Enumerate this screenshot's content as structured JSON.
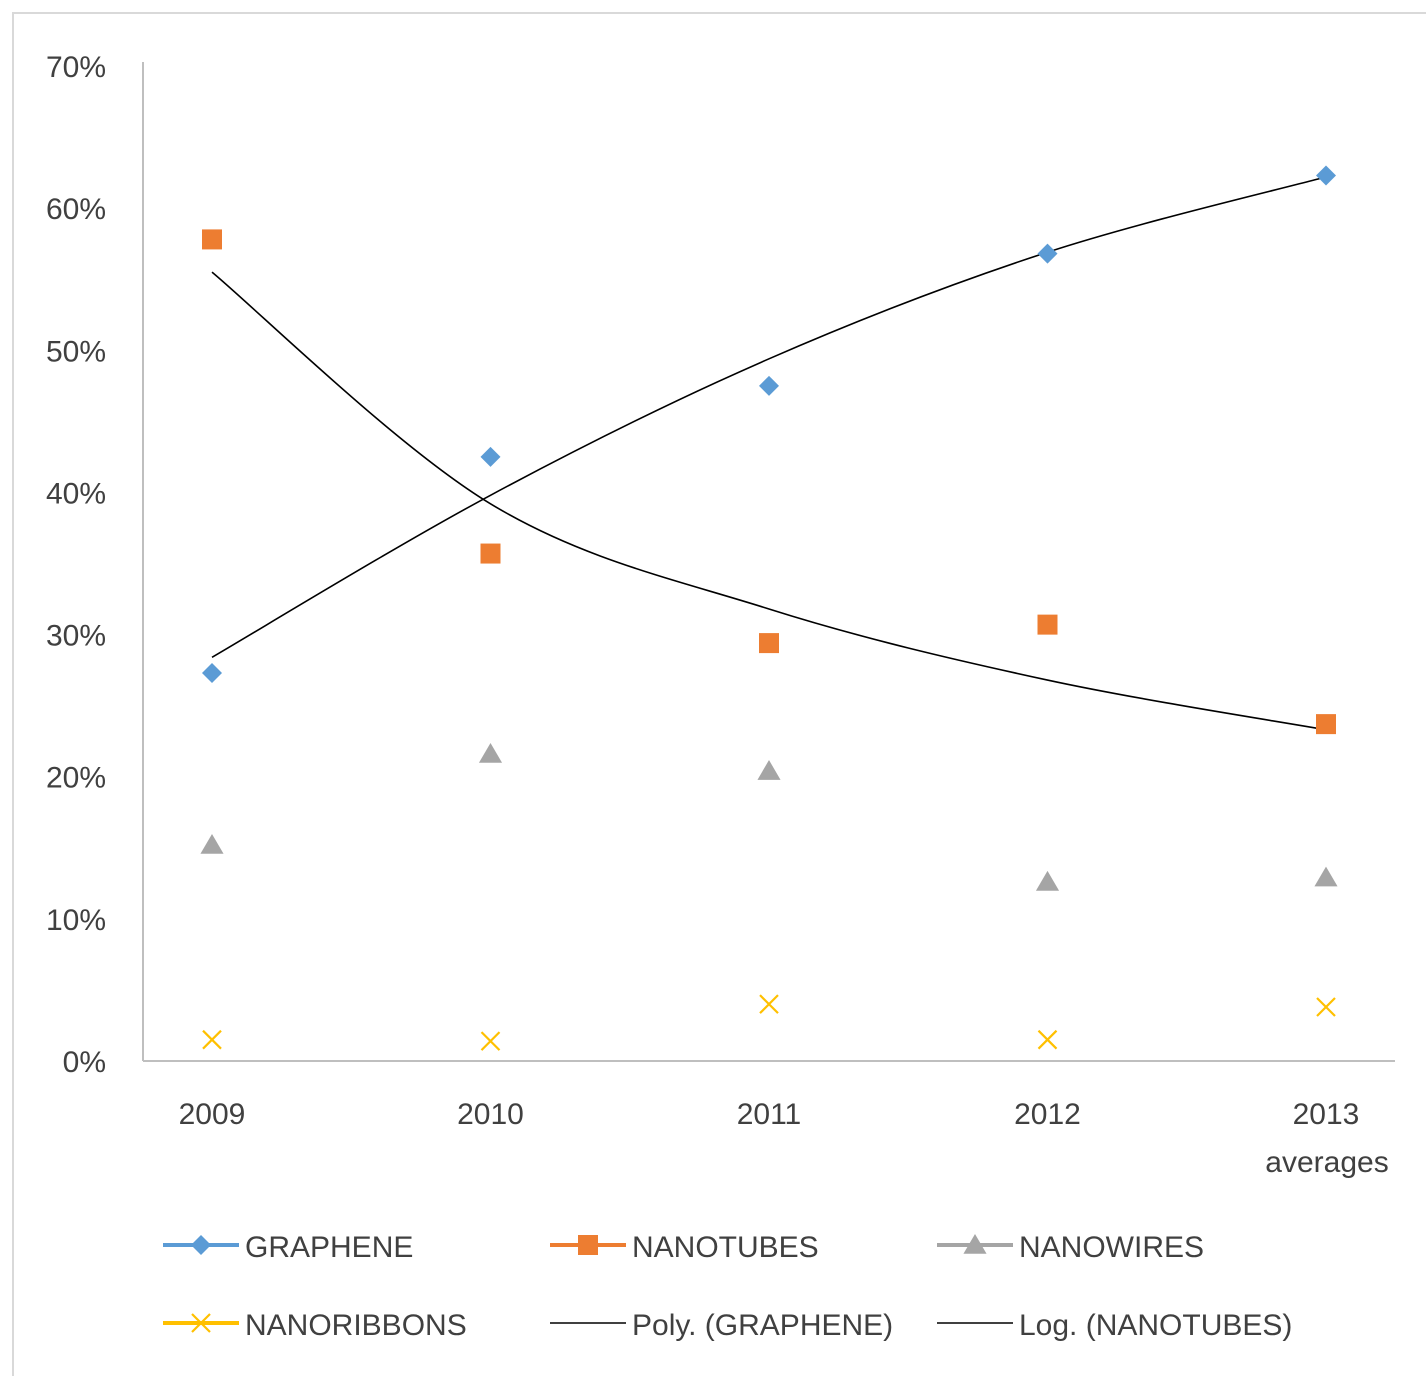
{
  "chart_data": {
    "type": "scatter",
    "title": "",
    "xlabel": "",
    "ylabel": "",
    "categories": [
      "2009",
      "2010",
      "2011",
      "2012",
      "2013\naverages"
    ],
    "yticks": [
      "0%",
      "10%",
      "20%",
      "30%",
      "40%",
      "50%",
      "60%",
      "70%"
    ],
    "ylim": [
      0,
      0.7
    ],
    "grid": false,
    "legend_position": "bottom",
    "series": [
      {
        "name": "GRAPHENE",
        "marker": "diamond",
        "color": "#5b9bd5",
        "values": [
          0.273,
          0.425,
          0.475,
          0.568,
          0.623
        ]
      },
      {
        "name": "NANOTUBES",
        "marker": "square",
        "color": "#ed7d31",
        "values": [
          0.578,
          0.357,
          0.294,
          0.307,
          0.237
        ]
      },
      {
        "name": "NANOWIRES",
        "marker": "triangle",
        "color": "#a5a5a5",
        "values": [
          0.152,
          0.216,
          0.204,
          0.126,
          0.129
        ]
      },
      {
        "name": "NANORIBBONS",
        "marker": "x",
        "color": "#ffc000",
        "values": [
          0.015,
          0.014,
          0.04,
          0.015,
          0.038
        ]
      }
    ],
    "trendlines": [
      {
        "name": "Poly. (GRAPHENE)",
        "kind": "polynomial",
        "color": "#000000",
        "values": [
          0.284,
          0.398,
          0.494,
          0.569,
          0.622
        ]
      },
      {
        "name": "Log. (NANOTUBES)",
        "kind": "logarithmic",
        "color": "#000000",
        "values": [
          0.555,
          0.392,
          0.318,
          0.268,
          0.233
        ]
      }
    ]
  }
}
